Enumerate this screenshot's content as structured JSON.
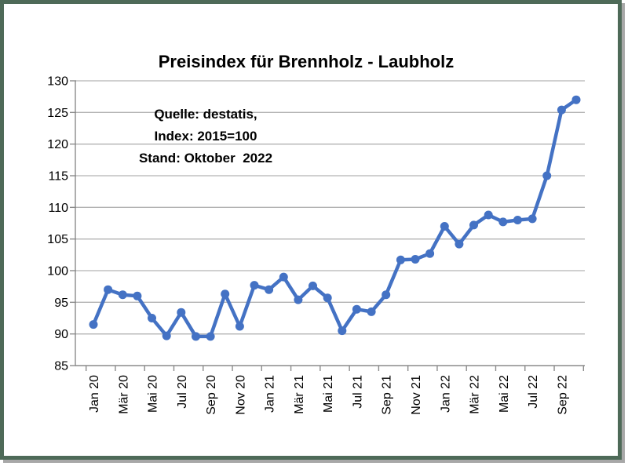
{
  "frame": {
    "border_color": "#4e6a58",
    "shadow_color": "#a8a8a8",
    "background": "#ffffff"
  },
  "chart_data": {
    "type": "line",
    "title": "Preisindex für Brennholz - Laubholz",
    "annotation": {
      "line1": "Quelle: destatis,",
      "line2": "Index: 2015=100",
      "line3": "Stand: Oktober  2022"
    },
    "categories": [
      "Jan 20",
      "Feb 20",
      "Mär 20",
      "Apr 20",
      "Mai 20",
      "Jun 20",
      "Jul 20",
      "Aug 20",
      "Sep 20",
      "Okt 20",
      "Nov 20",
      "Dez 20",
      "Jan 21",
      "Feb 21",
      "Mär 21",
      "Apr 21",
      "Mai 21",
      "Jun 21",
      "Jul 21",
      "Aug 21",
      "Sep 21",
      "Okt 21",
      "Nov 21",
      "Dez 21",
      "Jan 22",
      "Feb 22",
      "Mär 22",
      "Apr 22",
      "Mai 22",
      "Jun 22",
      "Jul 22",
      "Aug 22",
      "Sep 22",
      "Okt 22"
    ],
    "values": [
      91.5,
      97.0,
      96.2,
      96.0,
      92.5,
      89.7,
      93.4,
      89.6,
      89.6,
      96.3,
      91.2,
      97.7,
      97.0,
      99.0,
      95.4,
      97.6,
      95.7,
      90.5,
      93.9,
      93.5,
      96.2,
      101.7,
      101.8,
      102.7,
      107.0,
      104.2,
      107.2,
      108.8,
      107.7,
      108.0,
      108.2,
      115.0,
      125.4,
      127.0
    ],
    "x_label_interval": 2,
    "yticks": [
      85,
      90,
      95,
      100,
      105,
      110,
      115,
      120,
      125,
      130
    ],
    "ylim": [
      85,
      130
    ],
    "xlabel": "",
    "ylabel": "",
    "grid": true,
    "legend": "none",
    "line_color": "#4472C4",
    "marker": "circle",
    "gridline_color": "#b3b3b3",
    "axis_color": "#8c8c8c"
  }
}
